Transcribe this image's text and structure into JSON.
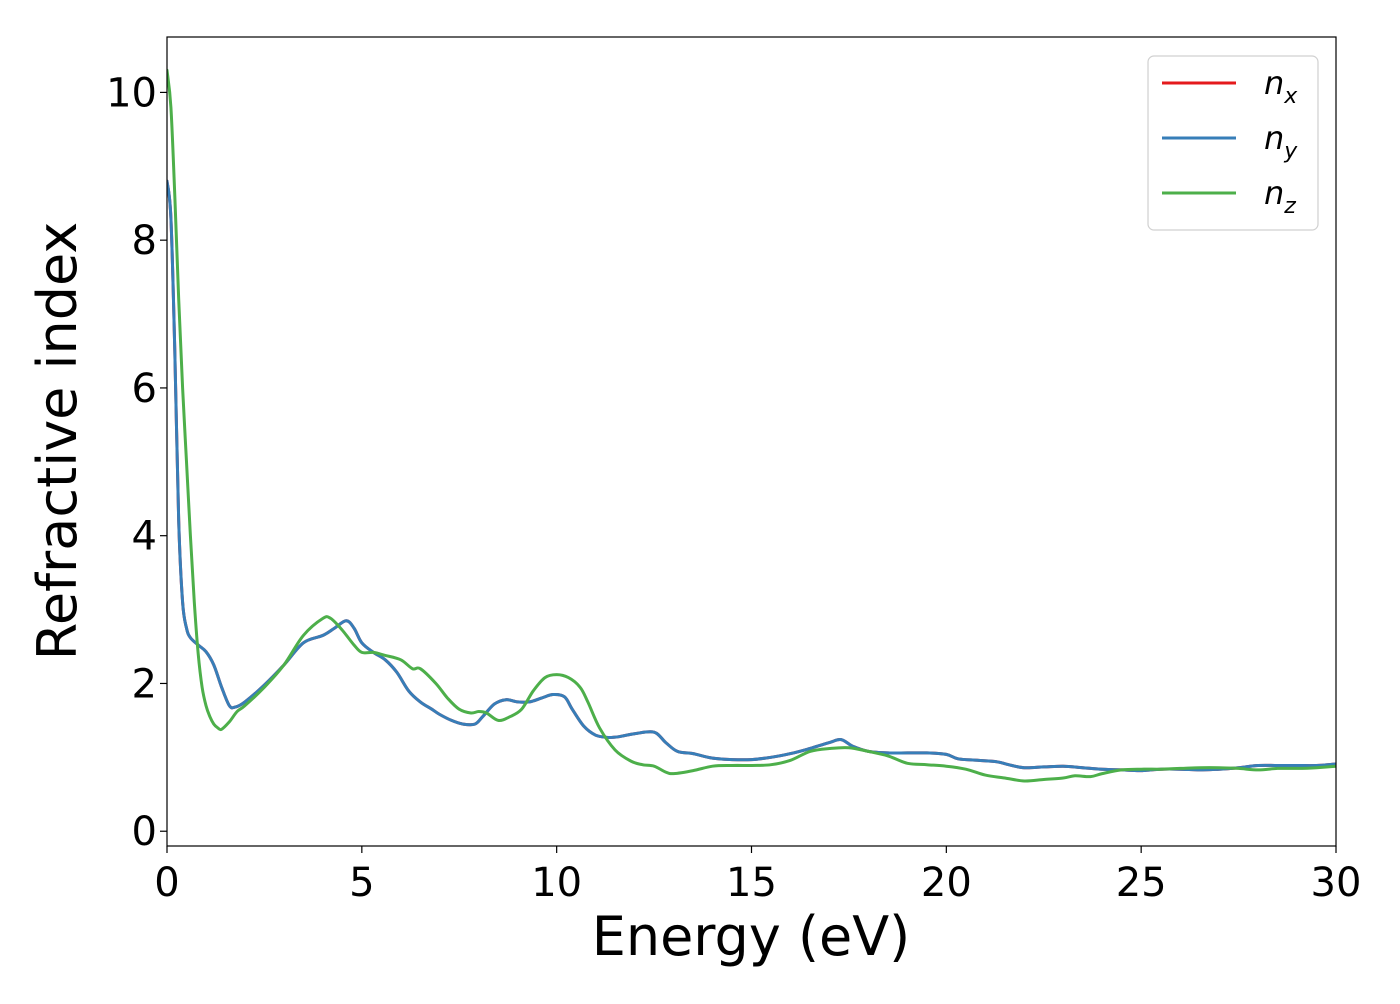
{
  "chart_data": {
    "type": "line",
    "title": "",
    "xlabel": "Energy (eV)",
    "ylabel": "Refractive index",
    "xlim": [
      0,
      30
    ],
    "ylim": [
      -0.2,
      10.75
    ],
    "xticks": [
      0,
      5,
      10,
      15,
      20,
      25,
      30
    ],
    "yticks": [
      0,
      2,
      4,
      6,
      8,
      10
    ],
    "grid": false,
    "legend_position": "top-right",
    "series": [
      {
        "name": "n",
        "subscript": "x",
        "color": "#e41a1c",
        "x": [
          0,
          0.1,
          0.2,
          0.3,
          0.4,
          0.5,
          0.6,
          0.8,
          1.0,
          1.2,
          1.4,
          1.6,
          1.75,
          2.0,
          2.5,
          3.0,
          3.5,
          4.0,
          4.3,
          4.6,
          4.8,
          5.0,
          5.3,
          5.6,
          5.9,
          6.2,
          6.5,
          6.8,
          7.0,
          7.3,
          7.6,
          7.9,
          8.1,
          8.4,
          8.7,
          9.0,
          9.3,
          9.6,
          9.9,
          10.2,
          10.4,
          10.7,
          11.0,
          11.3,
          11.6,
          12.0,
          12.5,
          12.8,
          13.1,
          13.5,
          14.0,
          14.5,
          15.0,
          15.5,
          16.0,
          16.5,
          17.0,
          17.3,
          17.6,
          18.0,
          18.5,
          19.0,
          19.5,
          20.0,
          20.3,
          20.8,
          21.3,
          21.6,
          22.0,
          22.5,
          23.0,
          23.5,
          24.0,
          24.5,
          25.0,
          25.5,
          26.0,
          26.5,
          27.0,
          27.5,
          28.0,
          28.5,
          29.0,
          29.5,
          30.0
        ],
        "y": [
          8.8,
          8.3,
          6.5,
          4.2,
          3.1,
          2.75,
          2.62,
          2.52,
          2.43,
          2.25,
          1.95,
          1.7,
          1.68,
          1.75,
          1.98,
          2.25,
          2.55,
          2.65,
          2.75,
          2.85,
          2.75,
          2.55,
          2.42,
          2.32,
          2.15,
          1.9,
          1.75,
          1.65,
          1.58,
          1.5,
          1.45,
          1.45,
          1.55,
          1.72,
          1.78,
          1.75,
          1.75,
          1.8,
          1.85,
          1.82,
          1.65,
          1.42,
          1.3,
          1.27,
          1.28,
          1.32,
          1.34,
          1.2,
          1.08,
          1.05,
          0.99,
          0.97,
          0.97,
          1.0,
          1.05,
          1.12,
          1.2,
          1.24,
          1.15,
          1.08,
          1.06,
          1.06,
          1.06,
          1.04,
          0.98,
          0.96,
          0.94,
          0.9,
          0.86,
          0.87,
          0.88,
          0.86,
          0.84,
          0.83,
          0.82,
          0.84,
          0.84,
          0.83,
          0.84,
          0.86,
          0.89,
          0.89,
          0.89,
          0.89,
          0.91
        ]
      },
      {
        "name": "n",
        "subscript": "y",
        "color": "#377eb8",
        "x": [
          0,
          0.1,
          0.2,
          0.3,
          0.4,
          0.5,
          0.6,
          0.8,
          1.0,
          1.2,
          1.4,
          1.6,
          1.75,
          2.0,
          2.5,
          3.0,
          3.5,
          4.0,
          4.3,
          4.6,
          4.8,
          5.0,
          5.3,
          5.6,
          5.9,
          6.2,
          6.5,
          6.8,
          7.0,
          7.3,
          7.6,
          7.9,
          8.1,
          8.4,
          8.7,
          9.0,
          9.3,
          9.6,
          9.9,
          10.2,
          10.4,
          10.7,
          11.0,
          11.3,
          11.6,
          12.0,
          12.5,
          12.8,
          13.1,
          13.5,
          14.0,
          14.5,
          15.0,
          15.5,
          16.0,
          16.5,
          17.0,
          17.3,
          17.6,
          18.0,
          18.5,
          19.0,
          19.5,
          20.0,
          20.3,
          20.8,
          21.3,
          21.6,
          22.0,
          22.5,
          23.0,
          23.5,
          24.0,
          24.5,
          25.0,
          25.5,
          26.0,
          26.5,
          27.0,
          27.5,
          28.0,
          28.5,
          29.0,
          29.5,
          30.0
        ],
        "y": [
          8.8,
          8.3,
          6.5,
          4.2,
          3.1,
          2.75,
          2.62,
          2.52,
          2.43,
          2.25,
          1.95,
          1.7,
          1.68,
          1.75,
          1.98,
          2.25,
          2.55,
          2.65,
          2.75,
          2.85,
          2.75,
          2.55,
          2.42,
          2.32,
          2.15,
          1.9,
          1.75,
          1.65,
          1.58,
          1.5,
          1.45,
          1.45,
          1.55,
          1.72,
          1.78,
          1.75,
          1.75,
          1.8,
          1.85,
          1.82,
          1.65,
          1.42,
          1.3,
          1.27,
          1.28,
          1.32,
          1.34,
          1.2,
          1.08,
          1.05,
          0.99,
          0.97,
          0.97,
          1.0,
          1.05,
          1.12,
          1.2,
          1.24,
          1.15,
          1.08,
          1.06,
          1.06,
          1.06,
          1.04,
          0.98,
          0.96,
          0.94,
          0.9,
          0.86,
          0.87,
          0.88,
          0.86,
          0.84,
          0.83,
          0.82,
          0.84,
          0.84,
          0.83,
          0.84,
          0.86,
          0.89,
          0.89,
          0.89,
          0.89,
          0.91
        ]
      },
      {
        "name": "n",
        "subscript": "z",
        "color": "#4daf4a",
        "x": [
          0,
          0.1,
          0.2,
          0.3,
          0.4,
          0.5,
          0.6,
          0.7,
          0.8,
          0.9,
          1.0,
          1.1,
          1.2,
          1.3,
          1.4,
          1.6,
          1.8,
          2.0,
          2.5,
          3.0,
          3.5,
          4.0,
          4.2,
          4.5,
          4.8,
          5.0,
          5.3,
          5.6,
          6.0,
          6.3,
          6.5,
          6.9,
          7.2,
          7.5,
          7.8,
          8.0,
          8.2,
          8.5,
          8.8,
          9.1,
          9.4,
          9.7,
          10.0,
          10.3,
          10.6,
          10.8,
          11.1,
          11.5,
          11.9,
          12.2,
          12.5,
          12.8,
          13.0,
          13.5,
          14.0,
          14.5,
          15.0,
          15.5,
          16.0,
          16.5,
          17.0,
          17.5,
          18.0,
          18.5,
          19.0,
          19.5,
          20.0,
          20.5,
          21.0,
          21.5,
          22.0,
          22.5,
          23.0,
          23.3,
          23.7,
          24.0,
          24.5,
          25.0,
          25.5,
          26.0,
          26.5,
          27.0,
          27.5,
          28.0,
          28.5,
          29.0,
          29.5,
          30.0
        ],
        "y": [
          10.3,
          9.8,
          8.6,
          7.2,
          6.0,
          5.0,
          4.0,
          3.1,
          2.4,
          1.95,
          1.7,
          1.55,
          1.45,
          1.4,
          1.38,
          1.48,
          1.62,
          1.7,
          1.95,
          2.25,
          2.65,
          2.88,
          2.88,
          2.72,
          2.52,
          2.42,
          2.42,
          2.38,
          2.32,
          2.2,
          2.2,
          2.0,
          1.8,
          1.65,
          1.6,
          1.62,
          1.6,
          1.5,
          1.55,
          1.65,
          1.9,
          2.08,
          2.12,
          2.08,
          1.95,
          1.75,
          1.4,
          1.1,
          0.95,
          0.9,
          0.88,
          0.8,
          0.78,
          0.82,
          0.88,
          0.89,
          0.89,
          0.9,
          0.96,
          1.08,
          1.12,
          1.13,
          1.08,
          1.02,
          0.92,
          0.9,
          0.88,
          0.84,
          0.76,
          0.72,
          0.68,
          0.7,
          0.72,
          0.75,
          0.74,
          0.78,
          0.83,
          0.84,
          0.84,
          0.85,
          0.86,
          0.86,
          0.85,
          0.83,
          0.85,
          0.85,
          0.86,
          0.88
        ]
      }
    ]
  }
}
